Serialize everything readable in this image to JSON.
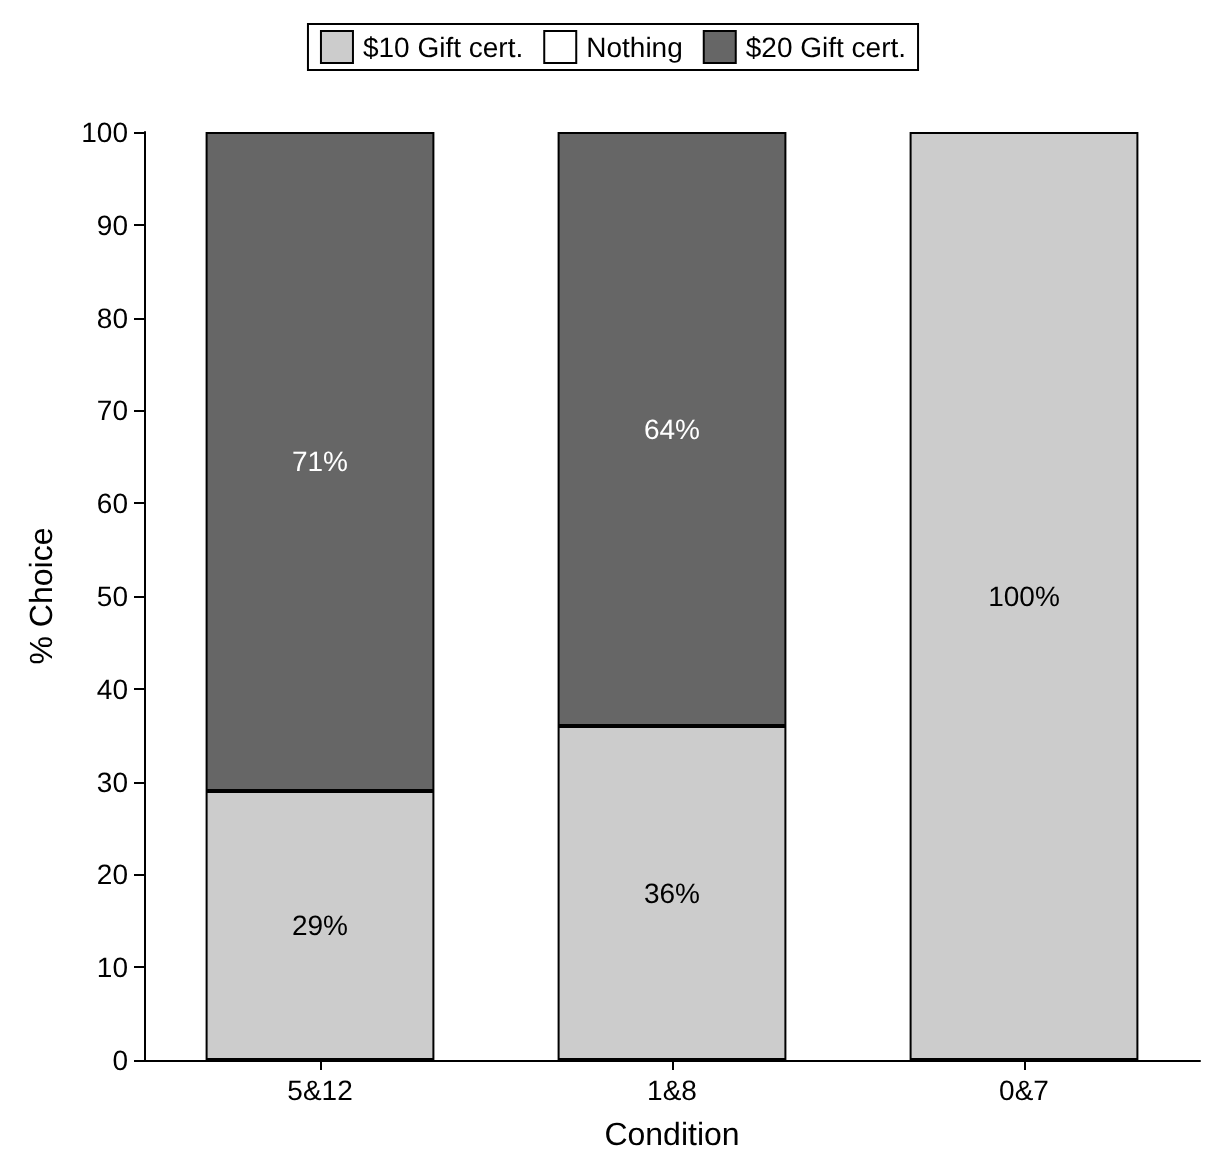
{
  "chart_data": {
    "type": "bar",
    "stacked": true,
    "xlabel": "Condition",
    "ylabel": "% Choice",
    "categories": [
      "5&12",
      "1&8",
      "0&7"
    ],
    "series": [
      {
        "name": "$10 Gift cert.",
        "color": "#cccccc",
        "values": [
          29,
          36,
          100
        ],
        "value_labels": [
          "29%",
          "36%",
          "100%"
        ]
      },
      {
        "name": "Nothing",
        "color": "#ffffff",
        "values": [
          0,
          0,
          0
        ]
      },
      {
        "name": "$20 Gift cert.",
        "color": "#666666",
        "values": [
          71,
          64,
          0
        ],
        "value_labels": [
          "71%",
          "64%",
          null
        ]
      }
    ],
    "ylim": [
      0,
      100
    ],
    "yticks": [
      0,
      10,
      20,
      30,
      40,
      50,
      60,
      70,
      80,
      90,
      100
    ],
    "grid": false,
    "legend": "top"
  }
}
